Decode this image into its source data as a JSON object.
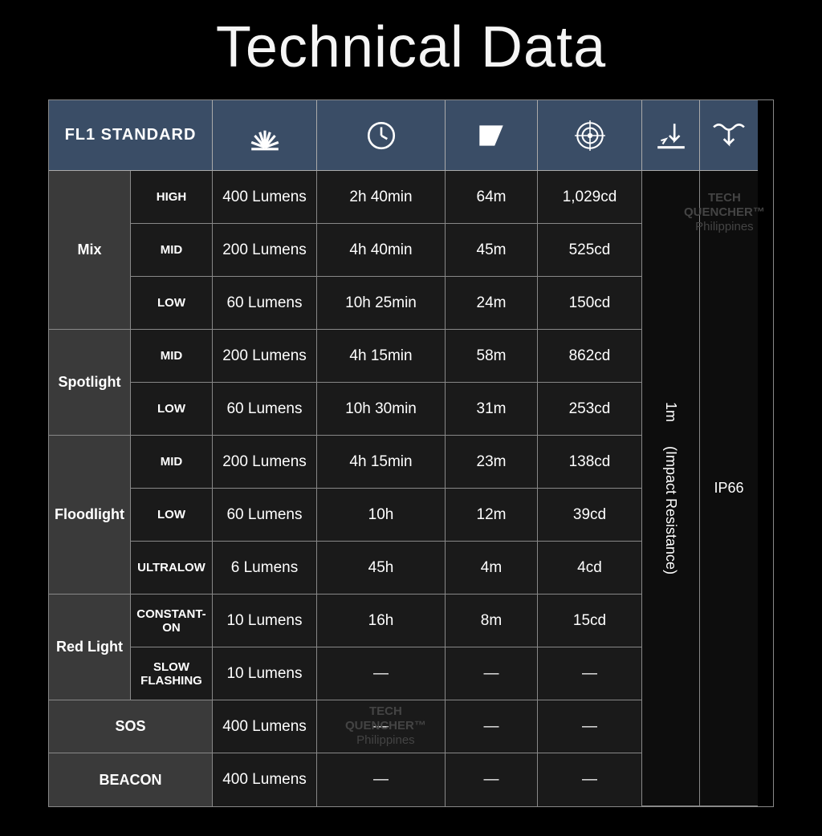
{
  "title": "Technical Data",
  "header_label": "FL1 STANDARD",
  "header_bg": "#3a4d66",
  "cell_bg_mode": "#3a3a3a",
  "cell_bg_data": "#1a1a1a",
  "border_color": "#888888",
  "text_color": "#ffffff",
  "icons": {
    "lumens": "sunburst-icon",
    "runtime": "clock-icon",
    "distance": "beam-icon",
    "intensity": "target-icon",
    "impact": "drop-icon",
    "water": "water-icon"
  },
  "vertical": {
    "impact": "1m      (Impact Resistance)",
    "water": "IP66"
  },
  "modes": [
    {
      "name": "Mix",
      "rows": [
        {
          "level": "HIGH",
          "lumens": "400 Lumens",
          "runtime": "2h 40min",
          "distance": "64m",
          "intensity": "1,029cd"
        },
        {
          "level": "MID",
          "lumens": "200 Lumens",
          "runtime": "4h 40min",
          "distance": "45m",
          "intensity": "525cd"
        },
        {
          "level": "LOW",
          "lumens": "60 Lumens",
          "runtime": "10h 25min",
          "distance": "24m",
          "intensity": "150cd"
        }
      ]
    },
    {
      "name": "Spotlight",
      "rows": [
        {
          "level": "MID",
          "lumens": "200 Lumens",
          "runtime": "4h 15min",
          "distance": "58m",
          "intensity": "862cd"
        },
        {
          "level": "LOW",
          "lumens": "60 Lumens",
          "runtime": "10h 30min",
          "distance": "31m",
          "intensity": "253cd"
        }
      ]
    },
    {
      "name": "Floodlight",
      "rows": [
        {
          "level": "MID",
          "lumens": "200 Lumens",
          "runtime": "4h 15min",
          "distance": "23m",
          "intensity": "138cd"
        },
        {
          "level": "LOW",
          "lumens": "60 Lumens",
          "runtime": "10h",
          "distance": "12m",
          "intensity": "39cd"
        },
        {
          "level": "ULTRALOW",
          "lumens": "6 Lumens",
          "runtime": "45h",
          "distance": "4m",
          "intensity": "4cd"
        }
      ]
    },
    {
      "name": "Red Light",
      "rows": [
        {
          "level": "CONSTANT-ON",
          "lumens": "10 Lumens",
          "runtime": "16h",
          "distance": "8m",
          "intensity": "15cd"
        },
        {
          "level": "SLOW FLASHING",
          "lumens": "10 Lumens",
          "runtime": "—",
          "distance": "—",
          "intensity": "—"
        }
      ]
    }
  ],
  "single_modes": [
    {
      "name": "SOS",
      "lumens": "400 Lumens",
      "runtime": "—",
      "distance": "—",
      "intensity": "—"
    },
    {
      "name": "BEACON",
      "lumens": "400 Lumens",
      "runtime": "—",
      "distance": "—",
      "intensity": "—"
    }
  ],
  "watermark": {
    "line1": "TECH",
    "line2": "QUENCHER™",
    "line3": "Philippines"
  }
}
